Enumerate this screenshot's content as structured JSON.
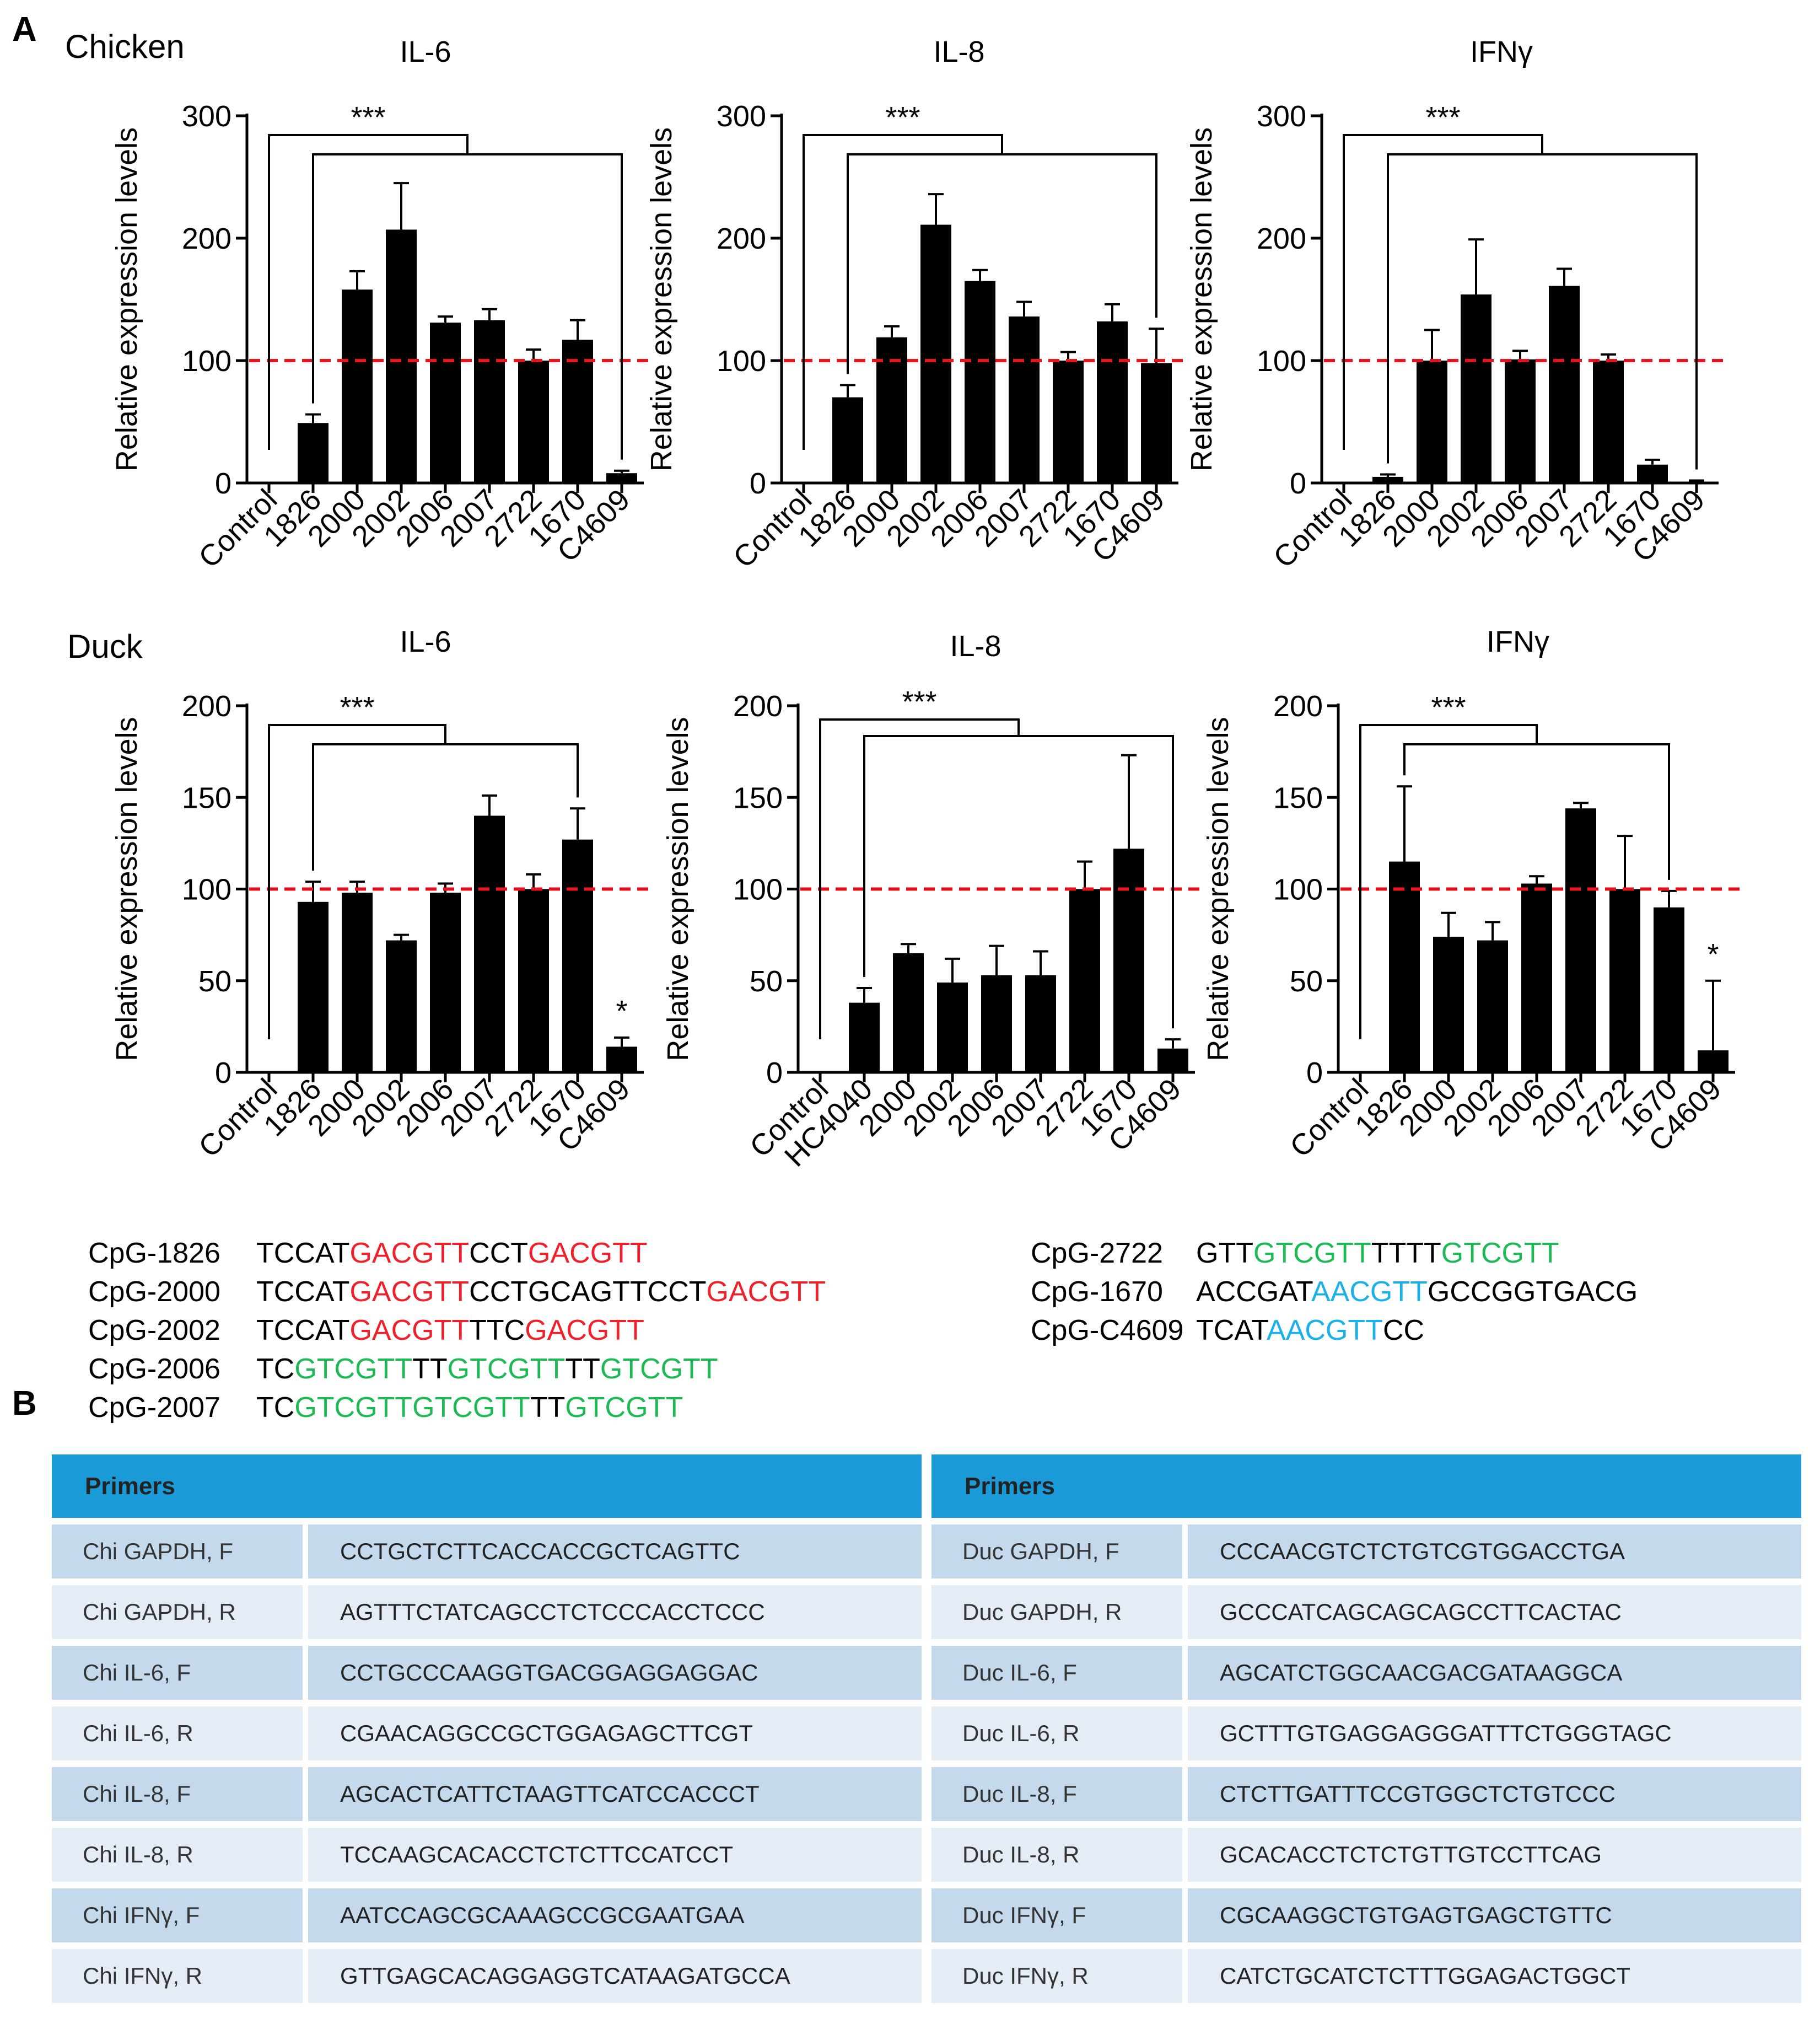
{
  "panel_a": {
    "letter": "A",
    "chicken_label": "Chicken",
    "duck_label": "Duck"
  },
  "panel_b": {
    "letter": "B"
  },
  "colors": {
    "bar": "#000000",
    "reference_line": "#e8141b",
    "gc_motif": "#f0202a",
    "green_motif": "#1db954",
    "blue_motif": "#1ab0e8",
    "table_header": "#1b9ad8",
    "table_dark_row": "#c5d9ec",
    "table_light_row": "#e4ecf5"
  },
  "chart_data": [
    {
      "type": "bar",
      "title": "IL-6",
      "species": "Chicken",
      "ylabel": "Relative expression levels",
      "xlabel": "",
      "ylim": [
        0,
        300
      ],
      "yticks": [
        0,
        100,
        200,
        300
      ],
      "categories": [
        "Control",
        "1826",
        "2000",
        "2002",
        "2006",
        "2007",
        "2722",
        "1670",
        "C4609"
      ],
      "values": [
        0,
        49,
        158,
        207,
        131,
        133,
        100,
        117,
        8
      ],
      "errors": [
        0,
        7,
        15,
        38,
        5,
        9,
        9,
        16,
        2
      ],
      "reference_line": 100,
      "significance": "***",
      "bracket_groups": [
        "Control",
        "1826 to C4609"
      ]
    },
    {
      "type": "bar",
      "title": "IL-8",
      "species": "Chicken",
      "ylabel": "Relative expression levels",
      "xlabel": "",
      "ylim": [
        0,
        300
      ],
      "yticks": [
        0,
        100,
        200,
        300
      ],
      "categories": [
        "Control",
        "1826",
        "2000",
        "2002",
        "2006",
        "2007",
        "2722",
        "1670",
        "C4609"
      ],
      "values": [
        1,
        70,
        119,
        211,
        165,
        136,
        100,
        132,
        98
      ],
      "errors": [
        0,
        10,
        9,
        25,
        9,
        12,
        7,
        14,
        28
      ],
      "reference_line": 100,
      "significance": "***",
      "bracket_groups": [
        "Control",
        "1826 to C4609"
      ]
    },
    {
      "type": "bar",
      "title": "IFNγ",
      "species": "Chicken",
      "ylabel": "Relative expression levels",
      "xlabel": "",
      "ylim": [
        0,
        300
      ],
      "yticks": [
        0,
        100,
        200,
        300
      ],
      "categories": [
        "Control",
        "1826",
        "2000",
        "2002",
        "2006",
        "2007",
        "2722",
        "1670",
        "C4609"
      ],
      "values": [
        0,
        5,
        100,
        154,
        101,
        161,
        100,
        15,
        1
      ],
      "errors": [
        0,
        2,
        25,
        45,
        7,
        14,
        5,
        4,
        1
      ],
      "reference_line": 100,
      "significance": "***",
      "bracket_groups": [
        "Control",
        "1826 to C4609"
      ]
    },
    {
      "type": "bar",
      "title": "IL-6",
      "species": "Duck",
      "ylabel": "Relative expression levels",
      "xlabel": "",
      "ylim": [
        0,
        200
      ],
      "yticks": [
        0,
        50,
        100,
        150,
        200
      ],
      "categories": [
        "Control",
        "1826",
        "2000",
        "2002",
        "2006",
        "2007",
        "2722",
        "1670",
        "C4609"
      ],
      "values": [
        0,
        93,
        98,
        72,
        98,
        140,
        100,
        127,
        14
      ],
      "errors": [
        0,
        11,
        6,
        3,
        5,
        11,
        8,
        17,
        5
      ],
      "reference_line": 100,
      "significance": "***",
      "bracket_groups": [
        "Control",
        "1826 to 1670"
      ],
      "annotations": [
        {
          "category": "C4609",
          "text": "*"
        }
      ]
    },
    {
      "type": "bar",
      "title": "IL-8",
      "species": "Duck",
      "ylabel": "Relative expression levels",
      "xlabel": "",
      "ylim": [
        0,
        200
      ],
      "yticks": [
        0,
        50,
        100,
        150,
        200
      ],
      "categories": [
        "Control",
        "HC4040",
        "2000",
        "2002",
        "2006",
        "2007",
        "2722",
        "1670",
        "C4609"
      ],
      "values": [
        0,
        38,
        65,
        49,
        53,
        53,
        100,
        122,
        13
      ],
      "errors": [
        0,
        8,
        5,
        13,
        16,
        13,
        15,
        51,
        5
      ],
      "reference_line": 100,
      "significance": "***",
      "bracket_groups": [
        "Control",
        "HC4040 to C4609"
      ]
    },
    {
      "type": "bar",
      "title": "IFNγ",
      "species": "Duck",
      "ylabel": "Relative expression levels",
      "xlabel": "",
      "ylim": [
        0,
        200
      ],
      "yticks": [
        0,
        50,
        100,
        150,
        200
      ],
      "categories": [
        "Control",
        "1826",
        "2000",
        "2002",
        "2006",
        "2007",
        "2722",
        "1670",
        "C4609"
      ],
      "values": [
        0,
        115,
        74,
        72,
        103,
        144,
        100,
        90,
        12
      ],
      "errors": [
        0,
        41,
        13,
        10,
        4,
        3,
        29,
        9,
        38
      ],
      "reference_line": 100,
      "significance": "***",
      "bracket_groups": [
        "Control",
        "1826 to 1670"
      ],
      "annotations": [
        {
          "category": "C4609",
          "text": "*"
        }
      ]
    }
  ],
  "sequences_left": [
    {
      "name": "CpG-1826",
      "parts": [
        {
          "t": "TCCAT",
          "c": "k"
        },
        {
          "t": "GACGTT",
          "c": "r"
        },
        {
          "t": "CCT",
          "c": "k"
        },
        {
          "t": "GACGTT",
          "c": "r"
        }
      ]
    },
    {
      "name": "CpG-2000",
      "parts": [
        {
          "t": "TCCAT",
          "c": "k"
        },
        {
          "t": "GACGTT",
          "c": "r"
        },
        {
          "t": "CCTGCAGTTCCT",
          "c": "k"
        },
        {
          "t": "GACGTT",
          "c": "r"
        }
      ]
    },
    {
      "name": "CpG-2002",
      "parts": [
        {
          "t": "TCCAT",
          "c": "k"
        },
        {
          "t": "GACGTT",
          "c": "r"
        },
        {
          "t": "TTC",
          "c": "k"
        },
        {
          "t": "GACGTT",
          "c": "r"
        }
      ]
    },
    {
      "name": "CpG-2006",
      "parts": [
        {
          "t": "TC",
          "c": "k"
        },
        {
          "t": "GTCGTT",
          "c": "g"
        },
        {
          "t": "TT",
          "c": "k"
        },
        {
          "t": "GTCGTT",
          "c": "g"
        },
        {
          "t": "TT",
          "c": "k"
        },
        {
          "t": "GTCGTT",
          "c": "g"
        }
      ]
    },
    {
      "name": "CpG-2007",
      "parts": [
        {
          "t": "TC",
          "c": "k"
        },
        {
          "t": "GTCGTTGTCGTT",
          "c": "g"
        },
        {
          "t": "TT",
          "c": "k"
        },
        {
          "t": "GTCGTT",
          "c": "g"
        }
      ]
    }
  ],
  "sequences_right": [
    {
      "name": "CpG-2722",
      "parts": [
        {
          "t": "GTT",
          "c": "k"
        },
        {
          "t": "GTCGTT",
          "c": "g"
        },
        {
          "t": "TTTT",
          "c": "k"
        },
        {
          "t": "GTCGTT",
          "c": "g"
        }
      ]
    },
    {
      "name": "CpG-1670",
      "parts": [
        {
          "t": "ACCGAT",
          "c": "k"
        },
        {
          "t": "AACGTT",
          "c": "b"
        },
        {
          "t": "GCCGGTGACG",
          "c": "k"
        }
      ]
    },
    {
      "name": "CpG-C4609",
      "parts": [
        {
          "t": "TCAT",
          "c": "k"
        },
        {
          "t": "AACGTT",
          "c": "b"
        },
        {
          "t": "CC",
          "c": "k"
        }
      ]
    }
  ],
  "primers_left": {
    "header": "Primers",
    "rows": [
      {
        "name": "Chi GAPDH, F",
        "seq": "CCTGCTCTTCACCACCGCTCAGTTC"
      },
      {
        "name": "Chi GAPDH, R",
        "seq": "AGTTTCTATCAGCCTCTCCCACCTCCC"
      },
      {
        "name": "Chi IL-6, F",
        "seq": "CCTGCCCAAGGTGACGGAGGAGGAC"
      },
      {
        "name": "Chi IL-6, R",
        "seq": "CGAACAGGCCGCTGGAGAGCTTCGT"
      },
      {
        "name": "Chi IL-8, F",
        "seq": "AGCACTCATTCTAAGTTCATCCACCCT"
      },
      {
        "name": "Chi IL-8, R",
        "seq": "TCCAAGCACACCTCTCTTCCATCCT"
      },
      {
        "name": "Chi IFNγ, F",
        "seq": "AATCCAGCGCAAAGCCGCGAATGAA"
      },
      {
        "name": "Chi IFNγ, R",
        "seq": "GTTGAGCACAGGAGGTCATAAGATGCCA"
      }
    ]
  },
  "primers_right": {
    "header": "Primers",
    "rows": [
      {
        "name": "Duc GAPDH, F",
        "seq": "CCCAACGTCTCTGTCGTGGACCTGA"
      },
      {
        "name": "Duc GAPDH, R",
        "seq": "GCCCATCAGCAGCAGCCTTCACTAC"
      },
      {
        "name": "Duc IL-6, F",
        "seq": "AGCATCTGGCAACGACGATAAGGCA"
      },
      {
        "name": "Duc IL-6, R",
        "seq": "GCTTTGTGAGGAGGGATTTCTGGGTAGC"
      },
      {
        "name": "Duc IL-8, F",
        "seq": "CTCTTGATTTCCGTGGCTCTGTCCC"
      },
      {
        "name": "Duc IL-8, R",
        "seq": "GCACACCTCTCTGTTGTCCTTCAG"
      },
      {
        "name": "Duc IFNγ, F",
        "seq": "CGCAAGGCTGTGAGTGAGCTGTTC"
      },
      {
        "name": "Duc IFNγ, R",
        "seq": "CATCTGCATCTCTTTGGAGACTGGCT"
      }
    ]
  }
}
